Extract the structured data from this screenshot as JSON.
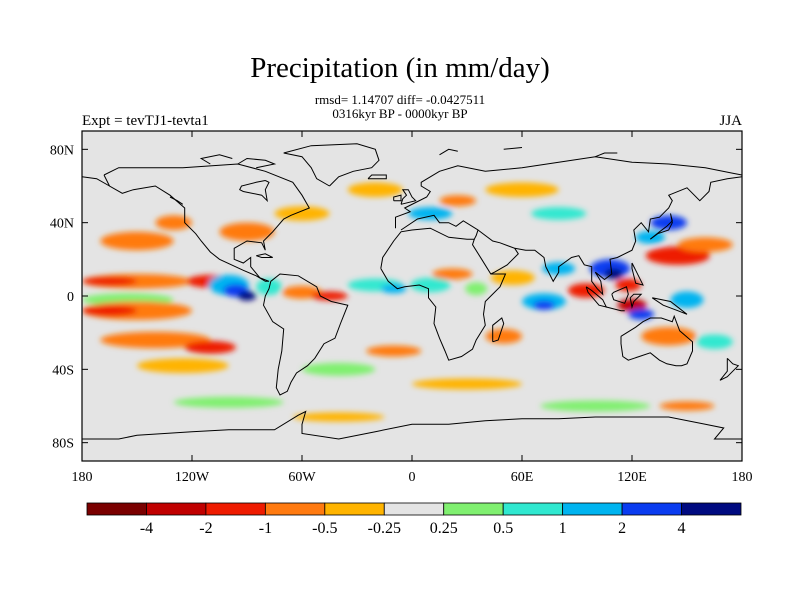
{
  "chart_data": {
    "type": "heatmap",
    "title": "Precipitation (in mm/day)",
    "subtitle_line1": "rmsd= 1.14707 diff= -0.0427511",
    "subtitle_line2": "0316kyr BP - 0000kyr BP",
    "left_string": "Expt = tevTJ1-tevta1",
    "right_string": "JJA",
    "x_axis": {
      "range": [
        -180,
        180
      ],
      "ticks": [
        -180,
        -120,
        -60,
        0,
        60,
        120,
        180
      ],
      "tick_labels": [
        "180",
        "120W",
        "60W",
        "0",
        "60E",
        "120E",
        "180"
      ]
    },
    "y_axis": {
      "range": [
        -90,
        90
      ],
      "ticks": [
        80,
        40,
        0,
        -40,
        -80
      ],
      "tick_labels": [
        "80N",
        "40N",
        "0",
        "40S",
        "80S"
      ]
    },
    "colorbar": {
      "levels": [
        -4,
        -2,
        -1,
        -0.5,
        -0.25,
        0.25,
        0.5,
        1,
        2,
        4
      ],
      "level_labels": [
        "-4",
        "-2",
        "-1",
        "-0.5",
        "-0.25",
        "0.25",
        "0.5",
        "1",
        "2",
        "4"
      ],
      "colors": [
        "#7a0000",
        "#c00000",
        "#ee1b00",
        "#ff7a10",
        "#ffb400",
        "#e4e4e4",
        "#80f070",
        "#30e8d0",
        "#00b4f0",
        "#0a3cf0",
        "#000a80"
      ]
    },
    "features": [
      {
        "lon": -150,
        "lat": 8,
        "w": 60,
        "h": 8,
        "level": 3
      },
      {
        "lon": -165,
        "lat": 8,
        "w": 30,
        "h": 5,
        "level": 2
      },
      {
        "lon": -110,
        "lat": 8,
        "w": 26,
        "h": 7,
        "level": 2
      },
      {
        "lon": -155,
        "lat": -2,
        "w": 50,
        "h": 7,
        "level": 6
      },
      {
        "lon": -150,
        "lat": -8,
        "w": 60,
        "h": 10,
        "level": 3
      },
      {
        "lon": -165,
        "lat": -8,
        "w": 30,
        "h": 6,
        "level": 2
      },
      {
        "lon": -140,
        "lat": -24,
        "w": 60,
        "h": 9,
        "level": 3
      },
      {
        "lon": -110,
        "lat": -28,
        "w": 28,
        "h": 7,
        "level": 2
      },
      {
        "lon": -125,
        "lat": -38,
        "w": 50,
        "h": 8,
        "level": 4
      },
      {
        "lon": -100,
        "lat": 6,
        "w": 22,
        "h": 11,
        "level": 8
      },
      {
        "lon": -96,
        "lat": 3,
        "w": 14,
        "h": 7,
        "level": 9
      },
      {
        "lon": -90,
        "lat": 0,
        "w": 10,
        "h": 5,
        "level": 10
      },
      {
        "lon": -78,
        "lat": 5,
        "w": 14,
        "h": 9,
        "level": 7
      },
      {
        "lon": -60,
        "lat": 2,
        "w": 22,
        "h": 7,
        "level": 3
      },
      {
        "lon": -45,
        "lat": 0,
        "w": 20,
        "h": 5,
        "level": 2
      },
      {
        "lon": -20,
        "lat": 6,
        "w": 30,
        "h": 7,
        "level": 7
      },
      {
        "lon": -10,
        "lat": 4,
        "w": 14,
        "h": 5,
        "level": 8
      },
      {
        "lon": 10,
        "lat": 6,
        "w": 22,
        "h": 8,
        "level": 7
      },
      {
        "lon": 22,
        "lat": 12,
        "w": 22,
        "h": 6,
        "level": 3
      },
      {
        "lon": 35,
        "lat": 4,
        "w": 12,
        "h": 7,
        "level": 6
      },
      {
        "lon": 55,
        "lat": 10,
        "w": 24,
        "h": 8,
        "level": 4
      },
      {
        "lon": 72,
        "lat": -3,
        "w": 24,
        "h": 9,
        "level": 8
      },
      {
        "lon": 72,
        "lat": -5,
        "w": 12,
        "h": 5,
        "level": 9
      },
      {
        "lon": 95,
        "lat": 3,
        "w": 20,
        "h": 8,
        "level": 2
      },
      {
        "lon": 80,
        "lat": 15,
        "w": 18,
        "h": 7,
        "level": 8
      },
      {
        "lon": 108,
        "lat": 15,
        "w": 22,
        "h": 10,
        "level": 9
      },
      {
        "lon": 110,
        "lat": 12,
        "w": 10,
        "h": 6,
        "level": 10
      },
      {
        "lon": 118,
        "lat": 6,
        "w": 14,
        "h": 7,
        "level": 2
      },
      {
        "lon": 145,
        "lat": 22,
        "w": 35,
        "h": 10,
        "level": 2
      },
      {
        "lon": 160,
        "lat": 28,
        "w": 30,
        "h": 8,
        "level": 3
      },
      {
        "lon": 140,
        "lat": 40,
        "w": 20,
        "h": 8,
        "level": 9
      },
      {
        "lon": 130,
        "lat": 32,
        "w": 16,
        "h": 7,
        "level": 8
      },
      {
        "lon": 150,
        "lat": -2,
        "w": 18,
        "h": 9,
        "level": 8
      },
      {
        "lon": 120,
        "lat": -5,
        "w": 16,
        "h": 7,
        "level": 1
      },
      {
        "lon": 125,
        "lat": -10,
        "w": 14,
        "h": 6,
        "level": 9
      },
      {
        "lon": 140,
        "lat": -22,
        "w": 30,
        "h": 10,
        "level": 3
      },
      {
        "lon": 165,
        "lat": -25,
        "w": 20,
        "h": 8,
        "level": 7
      },
      {
        "lon": -150,
        "lat": 30,
        "w": 40,
        "h": 10,
        "level": 3
      },
      {
        "lon": -130,
        "lat": 40,
        "w": 20,
        "h": 8,
        "level": 3
      },
      {
        "lon": -90,
        "lat": 35,
        "w": 30,
        "h": 10,
        "level": 3
      },
      {
        "lon": -60,
        "lat": 45,
        "w": 30,
        "h": 8,
        "level": 4
      },
      {
        "lon": -20,
        "lat": 58,
        "w": 30,
        "h": 8,
        "level": 4
      },
      {
        "lon": 10,
        "lat": 45,
        "w": 24,
        "h": 7,
        "level": 8
      },
      {
        "lon": 25,
        "lat": 52,
        "w": 20,
        "h": 6,
        "level": 3
      },
      {
        "lon": 60,
        "lat": 58,
        "w": 40,
        "h": 8,
        "level": 4
      },
      {
        "lon": 80,
        "lat": 45,
        "w": 30,
        "h": 7,
        "level": 7
      },
      {
        "lon": -40,
        "lat": -40,
        "w": 40,
        "h": 7,
        "level": 6
      },
      {
        "lon": -10,
        "lat": -30,
        "w": 30,
        "h": 6,
        "level": 3
      },
      {
        "lon": 50,
        "lat": -22,
        "w": 20,
        "h": 8,
        "level": 3
      },
      {
        "lon": 30,
        "lat": -48,
        "w": 60,
        "h": 6,
        "level": 4
      },
      {
        "lon": -100,
        "lat": -58,
        "w": 60,
        "h": 6,
        "level": 6
      },
      {
        "lon": 100,
        "lat": -60,
        "w": 60,
        "h": 6,
        "level": 6
      },
      {
        "lon": -40,
        "lat": -66,
        "w": 50,
        "h": 5,
        "level": 4
      },
      {
        "lon": 150,
        "lat": -60,
        "w": 30,
        "h": 5,
        "level": 3
      }
    ]
  }
}
